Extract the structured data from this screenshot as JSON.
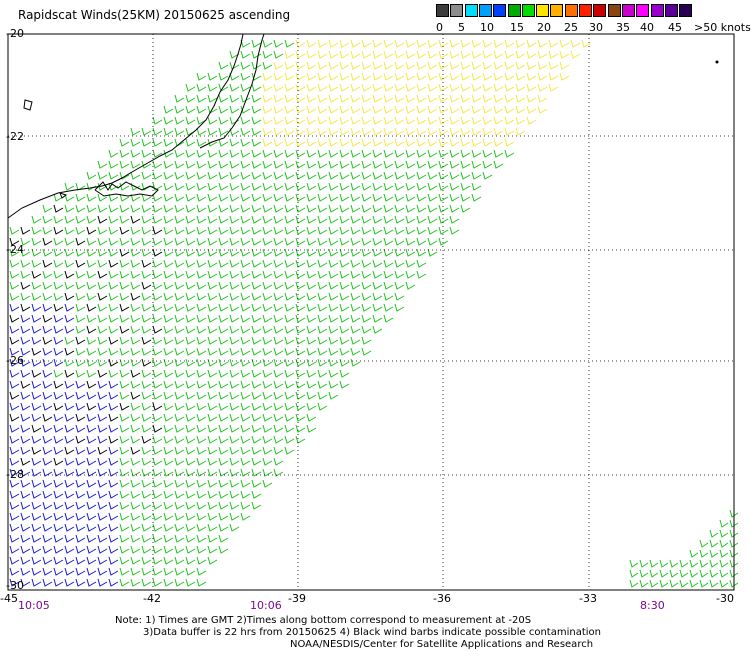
{
  "title": "Rapidscat Winds(25KM) 20150625 ascending",
  "scale": {
    "labels": [
      "0",
      "5",
      "10",
      "15",
      "20",
      "25",
      "30",
      "35",
      "40",
      "45",
      ">50 knots"
    ],
    "colors": [
      "#3c3c3c",
      "#8c8c8c",
      "#00ddff",
      "#00a0ff",
      "#0040ff",
      "#00aa00",
      "#00dd00",
      "#ffe400",
      "#ffb000",
      "#ff7000",
      "#ff2000",
      "#cc0000",
      "#8b4513",
      "#cc00cc",
      "#ff00ff",
      "#9900cc",
      "#5a0099",
      "#2a0055"
    ]
  },
  "axes": {
    "lat_labels": [
      "-20",
      "-22",
      "-24",
      "-26",
      "-28",
      "-30"
    ],
    "lon_labels": [
      "-45",
      "-42",
      "-39",
      "-36",
      "-33",
      "-30"
    ]
  },
  "times": [
    "10:05",
    "10:06",
    "8:30"
  ],
  "notes": [
    "Note: 1) Times are GMT 2)Times along bottom correspond to measurement at -20S",
    "3)Data buffer is 22 hrs from 20150625 4) Black wind barbs indicate possible contamination",
    "NOAA/NESDIS/Center for Satellite Applications and Research"
  ],
  "colors": {
    "blue_barb": "#1a1ad6",
    "green_barb": "#1fc41f",
    "yellow_barb": "#f5e642",
    "contaminated_barb": "#000000",
    "coastline": "#000000",
    "time_label": "#7a0a8e"
  }
}
